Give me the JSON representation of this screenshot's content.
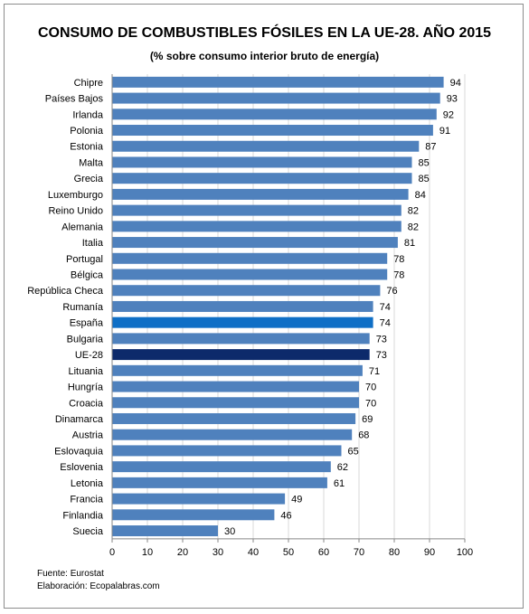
{
  "chart_data": {
    "type": "bar",
    "orientation": "horizontal",
    "title": "CONSUMO DE COMBUSTIBLES FÓSILES EN LA UE-28. AÑO 2015",
    "subtitle": "(% sobre consumo interior bruto de energía)",
    "categories": [
      "Chipre",
      "Países Bajos",
      "Irlanda",
      "Polonia",
      "Estonia",
      "Malta",
      "Grecia",
      "Luxemburgo",
      "Reino Unido",
      "Alemania",
      "Italia",
      "Portugal",
      "Bélgica",
      "República Checa",
      "Rumanía",
      "España",
      "Bulgaria",
      "UE-28",
      "Lituania",
      "Hungría",
      "Croacia",
      "Dinamarca",
      "Austria",
      "Eslovaquia",
      "Eslovenia",
      "Letonia",
      "Francia",
      "Finlandia",
      "Suecia"
    ],
    "values": [
      94,
      93,
      92,
      91,
      87,
      85,
      85,
      84,
      82,
      82,
      81,
      78,
      78,
      76,
      74,
      74,
      73,
      73,
      71,
      70,
      70,
      69,
      68,
      65,
      62,
      61,
      49,
      46,
      30
    ],
    "xlim": [
      0,
      100
    ],
    "xticks": [
      0,
      10,
      20,
      30,
      40,
      50,
      60,
      70,
      80,
      90,
      100
    ],
    "grid": true,
    "default_color": "#4f81bd",
    "highlights": {
      "España": "#0f6fc6",
      "UE-28": "#0d2a6b"
    }
  },
  "footer": {
    "source": "Fuente: Eurostat",
    "credit": "Elaboración: Ecopalabras.com"
  }
}
